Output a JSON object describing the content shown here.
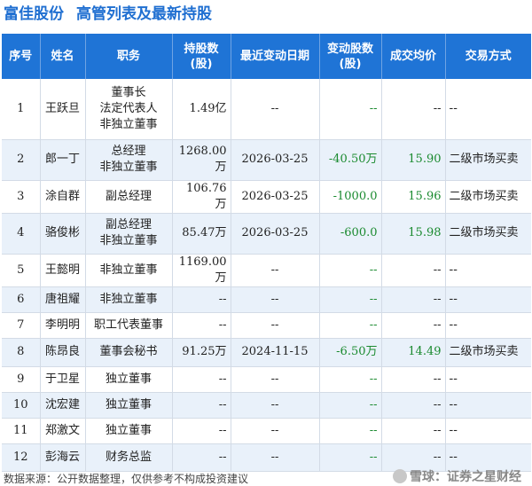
{
  "header": {
    "company": "富佳股份",
    "title": "高管列表及最新持股"
  },
  "table": {
    "columns": [
      "序号",
      "姓名",
      "职务",
      "持股数\n(股)",
      "最近变动日期",
      "变动股数\n(股)",
      "成交均价",
      "交易方式"
    ],
    "rows": [
      {
        "no": "1",
        "name": "王跃旦",
        "positions": [
          "董事长",
          "法定代表人",
          "非独立董事"
        ],
        "shares": "1.49亿",
        "date": "--",
        "change": "--",
        "price": "--",
        "mode": "--"
      },
      {
        "no": "2",
        "name": "郎一丁",
        "positions": [
          "总经理",
          "非独立董事"
        ],
        "shares": "1268.00万",
        "date": "2026-03-25",
        "change": "-40.50万",
        "price": "15.90",
        "mode": "二级市场买卖"
      },
      {
        "no": "3",
        "name": "涂自群",
        "positions": [
          "副总经理"
        ],
        "shares": "106.76万",
        "date": "2026-03-25",
        "change": "-1000.0",
        "price": "15.96",
        "mode": "二级市场买卖"
      },
      {
        "no": "4",
        "name": "骆俊彬",
        "positions": [
          "副总经理",
          "非独立董事"
        ],
        "shares": "85.47万",
        "date": "2026-03-25",
        "change": "-600.0",
        "price": "15.98",
        "mode": "二级市场买卖"
      },
      {
        "no": "5",
        "name": "王懿明",
        "positions": [
          "非独立董事"
        ],
        "shares": "1169.00万",
        "date": "--",
        "change": "--",
        "price": "--",
        "mode": "--"
      },
      {
        "no": "6",
        "name": "唐祖耀",
        "positions": [
          "非独立董事"
        ],
        "shares": "--",
        "date": "--",
        "change": "--",
        "price": "--",
        "mode": "--"
      },
      {
        "no": "7",
        "name": "李明明",
        "positions": [
          "职工代表董事"
        ],
        "shares": "--",
        "date": "--",
        "change": "--",
        "price": "--",
        "mode": "--"
      },
      {
        "no": "8",
        "name": "陈昂良",
        "positions": [
          "董事会秘书"
        ],
        "shares": "91.25万",
        "date": "2024-11-15",
        "change": "-6.50万",
        "price": "14.49",
        "mode": "二级市场买卖"
      },
      {
        "no": "9",
        "name": "于卫星",
        "positions": [
          "独立董事"
        ],
        "shares": "--",
        "date": "--",
        "change": "--",
        "price": "--",
        "mode": "--"
      },
      {
        "no": "10",
        "name": "沈宏建",
        "positions": [
          "独立董事"
        ],
        "shares": "--",
        "date": "--",
        "change": "--",
        "price": "--",
        "mode": "--"
      },
      {
        "no": "11",
        "name": "郑激文",
        "positions": [
          "独立董事"
        ],
        "shares": "--",
        "date": "--",
        "change": "--",
        "price": "--",
        "mode": "--"
      },
      {
        "no": "12",
        "name": "彭海云",
        "positions": [
          "财务总监"
        ],
        "shares": "--",
        "date": "--",
        "change": "--",
        "price": "--",
        "mode": "--"
      }
    ]
  },
  "footer": {
    "source": "数据来源：公开数据整理，仅供参考不构成投资建议",
    "brand": "雪球：证券之星财经"
  },
  "watermark": "证券之星",
  "colors": {
    "title": "#1f6fd1",
    "header_bg": "#1f74d6",
    "row_alt": "#e9f1fa",
    "negative": "#1a8a2f"
  }
}
